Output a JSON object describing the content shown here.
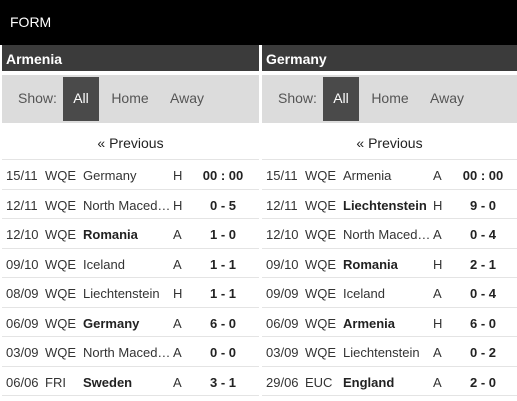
{
  "header": {
    "title": "FORM"
  },
  "filters": {
    "show_label": "Show:",
    "all": "All",
    "home": "Home",
    "away": "Away"
  },
  "previous_label": "« Previous",
  "teams": [
    {
      "name": "Armenia",
      "matches": [
        {
          "date": "15/11",
          "comp": "WQE",
          "opponent": "Germany",
          "ha": "H",
          "score": "00 : 00",
          "bold": false
        },
        {
          "date": "12/11",
          "comp": "WQE",
          "opponent": "North Macedonia",
          "ha": "H",
          "score": "0 - 5",
          "bold": false
        },
        {
          "date": "12/10",
          "comp": "WQE",
          "opponent": "Romania",
          "ha": "A",
          "score": "1 - 0",
          "bold": true
        },
        {
          "date": "09/10",
          "comp": "WQE",
          "opponent": "Iceland",
          "ha": "A",
          "score": "1 - 1",
          "bold": false
        },
        {
          "date": "08/09",
          "comp": "WQE",
          "opponent": "Liechtenstein",
          "ha": "H",
          "score": "1 - 1",
          "bold": false
        },
        {
          "date": "06/09",
          "comp": "WQE",
          "opponent": "Germany",
          "ha": "A",
          "score": "6 - 0",
          "bold": true
        },
        {
          "date": "03/09",
          "comp": "WQE",
          "opponent": "North Macedonia",
          "ha": "A",
          "score": "0 - 0",
          "bold": false
        },
        {
          "date": "06/06",
          "comp": "FRI",
          "opponent": "Sweden",
          "ha": "A",
          "score": "3 - 1",
          "bold": true
        }
      ]
    },
    {
      "name": "Germany",
      "matches": [
        {
          "date": "15/11",
          "comp": "WQE",
          "opponent": "Armenia",
          "ha": "A",
          "score": "00 : 00",
          "bold": false
        },
        {
          "date": "12/11",
          "comp": "WQE",
          "opponent": "Liechtenstein",
          "ha": "H",
          "score": "9 - 0",
          "bold": true
        },
        {
          "date": "12/10",
          "comp": "WQE",
          "opponent": "North Macedonia",
          "ha": "A",
          "score": "0 - 4",
          "bold": false
        },
        {
          "date": "09/10",
          "comp": "WQE",
          "opponent": "Romania",
          "ha": "H",
          "score": "2 - 1",
          "bold": true
        },
        {
          "date": "09/09",
          "comp": "WQE",
          "opponent": "Iceland",
          "ha": "A",
          "score": "0 - 4",
          "bold": false
        },
        {
          "date": "06/09",
          "comp": "WQE",
          "opponent": "Armenia",
          "ha": "H",
          "score": "6 - 0",
          "bold": true
        },
        {
          "date": "03/09",
          "comp": "WQE",
          "opponent": "Liechtenstein",
          "ha": "A",
          "score": "0 - 2",
          "bold": false
        },
        {
          "date": "29/06",
          "comp": "EUC",
          "opponent": "England",
          "ha": "A",
          "score": "2 - 0",
          "bold": true
        }
      ]
    }
  ]
}
